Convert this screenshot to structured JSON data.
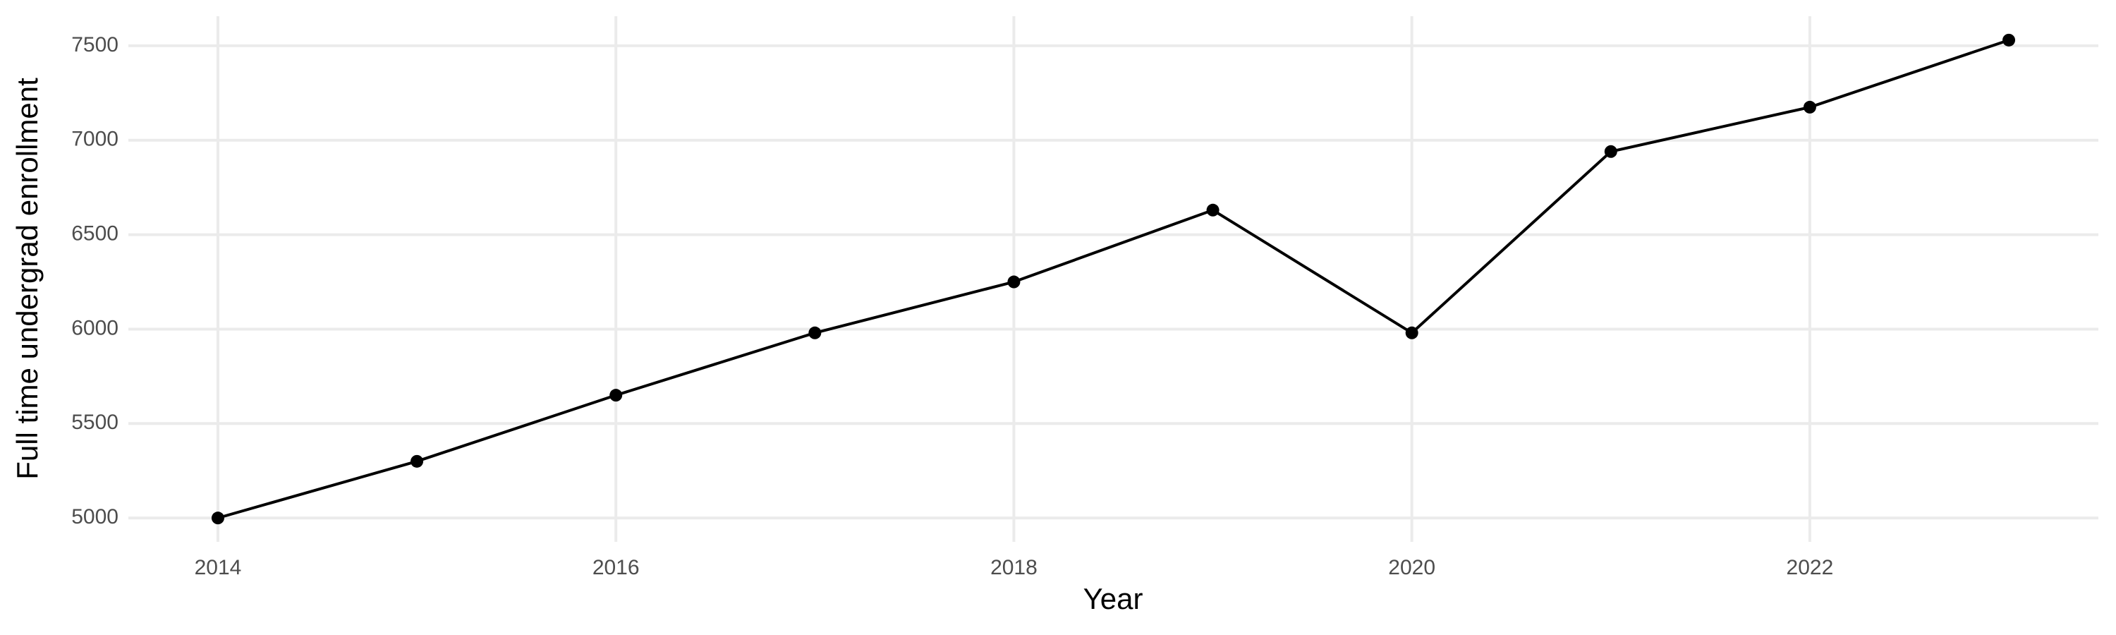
{
  "chart_data": {
    "type": "line",
    "x_label": "Year",
    "y_label": "Full time undergrad enrollment",
    "x": [
      2014,
      2015,
      2016,
      2017,
      2018,
      2019,
      2020,
      2021,
      2022,
      2023
    ],
    "series": [
      {
        "name": "Full time undergrad enrollment",
        "color": "#000000",
        "values": [
          5000,
          5300,
          5650,
          5980,
          6250,
          6630,
          5980,
          6940,
          7175,
          7530
        ]
      }
    ],
    "xlim": [
      2013.55,
      2023.45
    ],
    "xticks": [
      2014,
      2016,
      2018,
      2020,
      2022
    ],
    "ylim": [
      4873.5,
      7656.5
    ],
    "yticks": [
      5000,
      5500,
      6000,
      6500,
      7000,
      7500
    ],
    "grid": true
  }
}
